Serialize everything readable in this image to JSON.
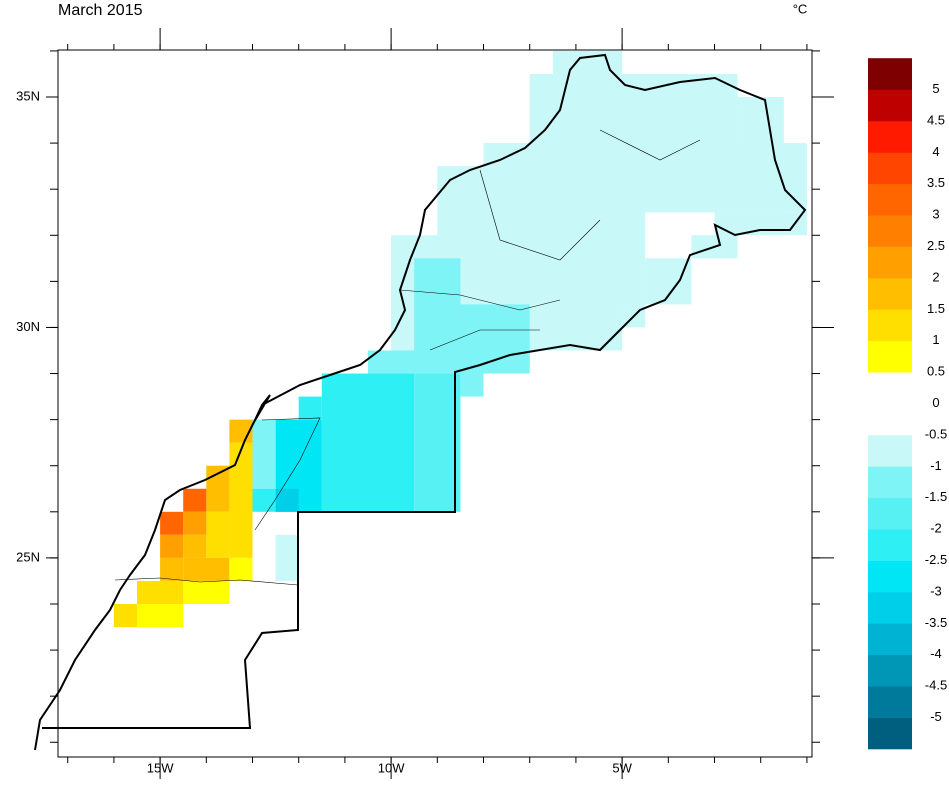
{
  "chart_data": {
    "type": "map",
    "title": "March 2015",
    "unit": "°C",
    "xlim": [
      -17.21,
      -0.89
    ],
    "ylim": [
      20.68,
      36.02
    ],
    "xticks": [
      {
        "value": -15,
        "label": "15W"
      },
      {
        "value": -10,
        "label": "10W"
      },
      {
        "value": -5,
        "label": "5W"
      }
    ],
    "yticks": [
      {
        "value": 25,
        "label": "25N"
      },
      {
        "value": 30,
        "label": "30N"
      },
      {
        "value": 35,
        "label": "35N"
      }
    ],
    "colorbar": {
      "levels": [
        -5,
        -4.5,
        -4,
        -3.5,
        -3,
        -2.5,
        -2,
        -1.5,
        -1,
        -0.5,
        0,
        0.5,
        1,
        1.5,
        2,
        2.5,
        3,
        3.5,
        4,
        4.5,
        5
      ],
      "colors": [
        "#005f7f",
        "#007a9a",
        "#0097b6",
        "#00b3d2",
        "#00cfea",
        "#00e6f5",
        "#2ef0f4",
        "#57f1f4",
        "#7ef4f6",
        "#c8f8f8",
        "#ffffff",
        "#ffffff",
        "#ffff00",
        "#ffdf00",
        "#ffbf00",
        "#ff9f00",
        "#ff8000",
        "#ff6600",
        "#ff4500",
        "#ff1a00",
        "#bf0000",
        "#7f0000"
      ]
    },
    "cells": [
      {
        "lon": [
          -6.5,
          -5
        ],
        "lat": [
          35.5,
          36
        ],
        "value": -0.75
      },
      {
        "lon": [
          -7,
          -2.5
        ],
        "lat": [
          32.5,
          35.5
        ],
        "value": -0.75
      },
      {
        "lon": [
          -2.5,
          -1.5
        ],
        "lat": [
          32.5,
          35
        ],
        "value": -0.75
      },
      {
        "lon": [
          -8,
          -1
        ],
        "lat": [
          32.5,
          34
        ],
        "value": -0.75
      },
      {
        "lon": [
          -3,
          -1
        ],
        "lat": [
          32,
          32.5
        ],
        "value": -0.75
      },
      {
        "lon": [
          -3.5,
          -2.5
        ],
        "lat": [
          31.5,
          32
        ],
        "value": -0.75
      },
      {
        "lon": [
          -9,
          -4.5
        ],
        "lat": [
          30.5,
          33.5
        ],
        "value": -0.75
      },
      {
        "lon": [
          -4.5,
          -3.5
        ],
        "lat": [
          30.5,
          31.5
        ],
        "value": -0.75
      },
      {
        "lon": [
          -5,
          -4.5
        ],
        "lat": [
          30,
          30.5
        ],
        "value": -0.75
      },
      {
        "lon": [
          -10,
          -5
        ],
        "lat": [
          29.5,
          32
        ],
        "value": -0.75
      },
      {
        "lon": [
          -9.5,
          -8.5
        ],
        "lat": [
          29.5,
          31.5
        ],
        "value": -1.25
      },
      {
        "lon": [
          -8.5,
          -7
        ],
        "lat": [
          29.5,
          30.5
        ],
        "value": -1.25
      },
      {
        "lon": [
          -10.5,
          -7
        ],
        "lat": [
          29,
          29.5
        ],
        "value": -1.25
      },
      {
        "lon": [
          -8.5,
          -8
        ],
        "lat": [
          28.5,
          29
        ],
        "value": -1.25
      },
      {
        "lon": [
          -11.5,
          -9.5
        ],
        "lat": [
          26,
          29
        ],
        "value": -2.25
      },
      {
        "lon": [
          -12,
          -11.5
        ],
        "lat": [
          28,
          28.5
        ],
        "value": -2.25
      },
      {
        "lon": [
          -12.5,
          -11.5
        ],
        "lat": [
          26,
          28
        ],
        "value": -2.75
      },
      {
        "lon": [
          -12.5,
          -12
        ],
        "lat": [
          26,
          26.5
        ],
        "value": -3.25
      },
      {
        "lon": [
          -9.5,
          -8.5
        ],
        "lat": [
          26,
          29
        ],
        "value": -1.75
      },
      {
        "lon": [
          -13,
          -12.5
        ],
        "lat": [
          26.5,
          28
        ],
        "value": -1.25
      },
      {
        "lon": [
          -13,
          -12.5
        ],
        "lat": [
          26,
          26.5
        ],
        "value": -2.25
      },
      {
        "lon": [
          -12.5,
          -12
        ],
        "lat": [
          24.5,
          25.5
        ],
        "value": -0.75
      },
      {
        "lon": [
          -13.5,
          -13
        ],
        "lat": [
          25,
          27.5
        ],
        "value": 1.25
      },
      {
        "lon": [
          -13.5,
          -13
        ],
        "lat": [
          27.5,
          28
        ],
        "value": 1.75
      },
      {
        "lon": [
          -14,
          -13.5
        ],
        "lat": [
          26,
          27
        ],
        "value": 1.75
      },
      {
        "lon": [
          -14,
          -13.5
        ],
        "lat": [
          25,
          26
        ],
        "value": 1.25
      },
      {
        "lon": [
          -14.5,
          -14
        ],
        "lat": [
          26,
          26.5
        ],
        "value": 3.25
      },
      {
        "lon": [
          -14.5,
          -14
        ],
        "lat": [
          25.5,
          26
        ],
        "value": 2.25
      },
      {
        "lon": [
          -14.5,
          -14
        ],
        "lat": [
          25,
          25.5
        ],
        "value": 1.75
      },
      {
        "lon": [
          -15,
          -14.5
        ],
        "lat": [
          25.5,
          26
        ],
        "value": 3.25
      },
      {
        "lon": [
          -15,
          -14.5
        ],
        "lat": [
          25,
          25.5
        ],
        "value": 2.25
      },
      {
        "lon": [
          -15,
          -14.5
        ],
        "lat": [
          24.5,
          25
        ],
        "value": 1.75
      },
      {
        "lon": [
          -14.5,
          -13.5
        ],
        "lat": [
          24.5,
          25
        ],
        "value": 1.75
      },
      {
        "lon": [
          -13.5,
          -13
        ],
        "lat": [
          24.5,
          25
        ],
        "value": 0.75
      },
      {
        "lon": [
          -14.5,
          -13.5
        ],
        "lat": [
          24,
          24.5
        ],
        "value": 0.75
      },
      {
        "lon": [
          -15.5,
          -14.5
        ],
        "lat": [
          24,
          24.5
        ],
        "value": 1.25
      },
      {
        "lon": [
          -16,
          -15.5
        ],
        "lat": [
          23.5,
          24
        ],
        "value": 1.25
      },
      {
        "lon": [
          -15.5,
          -14.5
        ],
        "lat": [
          23.5,
          24
        ],
        "value": 0.75
      }
    ]
  }
}
